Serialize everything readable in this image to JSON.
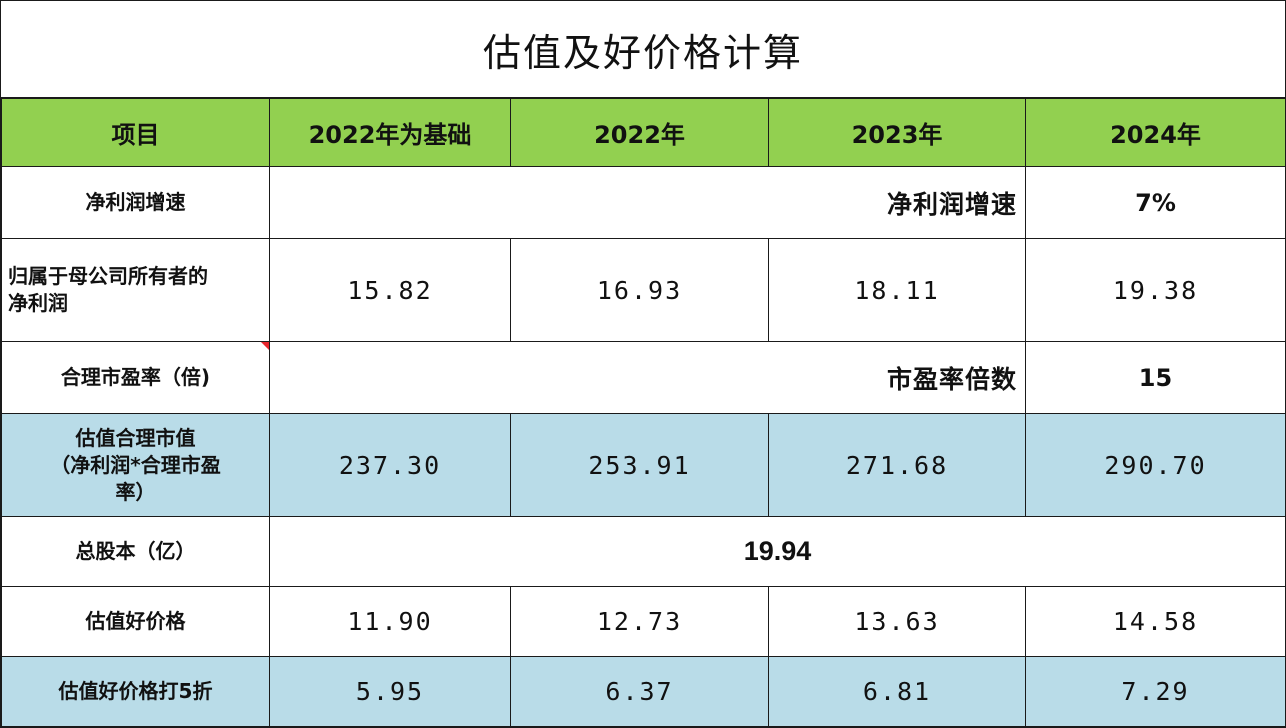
{
  "title": "估值及好价格计算",
  "columns": [
    "项目",
    "2022年为基础",
    "2022年",
    "2023年",
    "2024年"
  ],
  "rows": {
    "growth": {
      "label": "净利润增速",
      "param_label": "净利润增速",
      "param_value": "7%"
    },
    "net_profit": {
      "label_line1": "归属于母公司所有者的",
      "label_line2": "净利润",
      "values": [
        "15.82",
        "16.93",
        "18.11",
        "19.38"
      ]
    },
    "pe": {
      "label": "合理市盈率（倍)",
      "param_label": "市盈率倍数",
      "param_value": "15"
    },
    "market_cap": {
      "label_line1": "估值合理市值",
      "label_line2": "（净利润*合理市盈",
      "label_line3": "率）",
      "values": [
        "237.30",
        "253.91",
        "271.68",
        "290.70"
      ]
    },
    "shares": {
      "label": "总股本（亿）",
      "value": "19.94"
    },
    "good_price": {
      "label": "估值好价格",
      "values": [
        "11.90",
        "12.73",
        "13.63",
        "14.58"
      ]
    },
    "half_price": {
      "label": "估值好价格打5折",
      "values": [
        "5.95",
        "6.37",
        "6.81",
        "7.29"
      ]
    }
  },
  "colors": {
    "header_bg": "#92d050",
    "highlight_bg": "#b9dce8",
    "accent_red": "#e8252c"
  }
}
